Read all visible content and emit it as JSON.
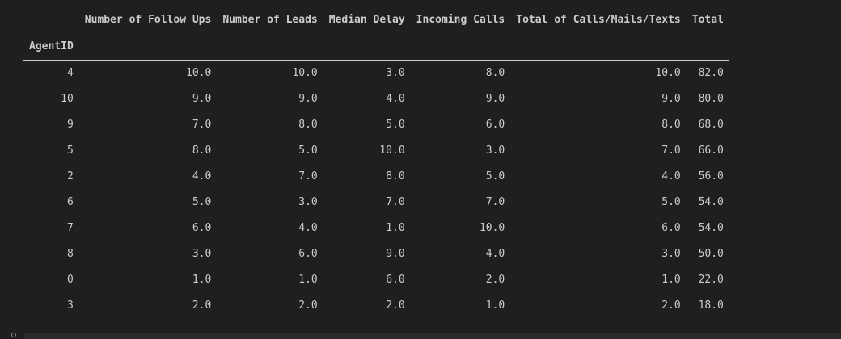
{
  "table": {
    "columns": [
      "Number of Follow Ups",
      "Number of Leads",
      "Median Delay",
      "Incoming Calls",
      "Total of Calls/Mails/Texts",
      "Total"
    ],
    "index_name": "AgentID",
    "rows": [
      {
        "id": "4",
        "values": [
          "10.0",
          "10.0",
          "3.0",
          "8.0",
          "10.0",
          "82.0"
        ]
      },
      {
        "id": "10",
        "values": [
          "9.0",
          "9.0",
          "4.0",
          "9.0",
          "9.0",
          "80.0"
        ]
      },
      {
        "id": "9",
        "values": [
          "7.0",
          "8.0",
          "5.0",
          "6.0",
          "8.0",
          "68.0"
        ]
      },
      {
        "id": "5",
        "values": [
          "8.0",
          "5.0",
          "10.0",
          "3.0",
          "7.0",
          "66.0"
        ]
      },
      {
        "id": "2",
        "values": [
          "4.0",
          "7.0",
          "8.0",
          "5.0",
          "4.0",
          "56.0"
        ]
      },
      {
        "id": "6",
        "values": [
          "5.0",
          "3.0",
          "7.0",
          "7.0",
          "5.0",
          "54.0"
        ]
      },
      {
        "id": "7",
        "values": [
          "6.0",
          "4.0",
          "1.0",
          "10.0",
          "6.0",
          "54.0"
        ]
      },
      {
        "id": "8",
        "values": [
          "3.0",
          "6.0",
          "9.0",
          "4.0",
          "3.0",
          "50.0"
        ]
      },
      {
        "id": "0",
        "values": [
          "1.0",
          "1.0",
          "6.0",
          "2.0",
          "1.0",
          "22.0"
        ]
      },
      {
        "id": "3",
        "values": [
          "2.0",
          "2.0",
          "2.0",
          "1.0",
          "2.0",
          "18.0"
        ]
      }
    ]
  },
  "theme": {
    "background": "#1f1f1f",
    "text": "#cccccc",
    "rule": "#cccccc"
  }
}
